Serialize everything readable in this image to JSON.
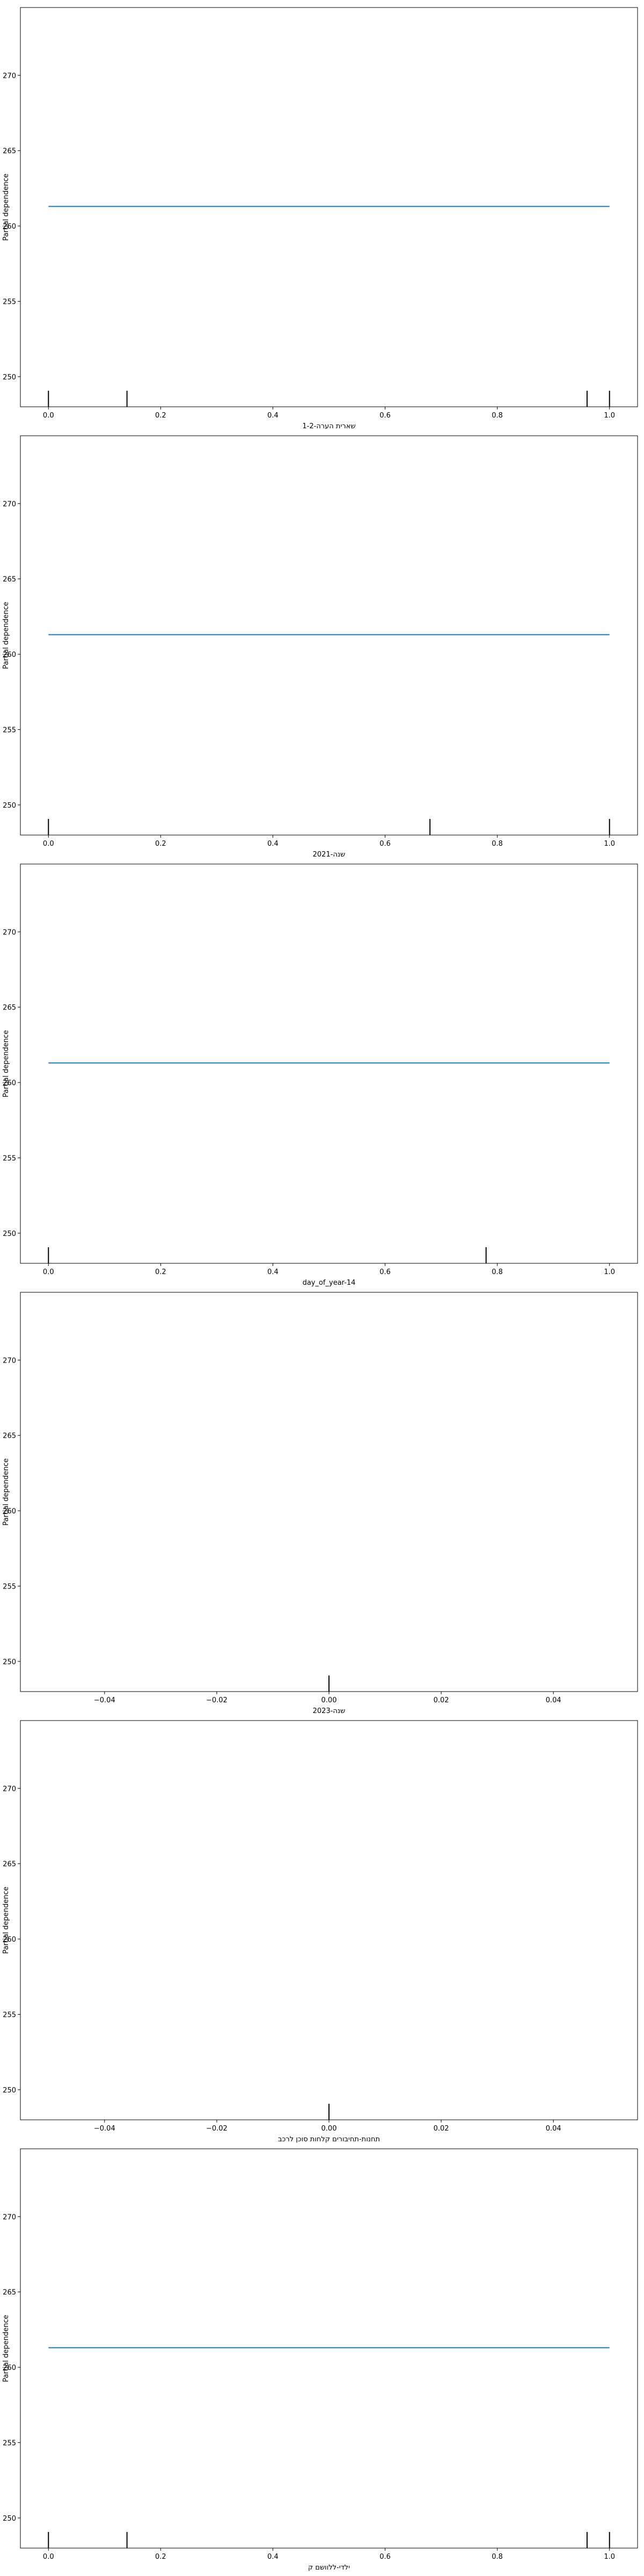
{
  "colors": {
    "line": "#1f77b4",
    "axes": "#000000",
    "rug": "#000000",
    "background": "#ffffff"
  },
  "chart_data": [
    {
      "type": "line",
      "xlabel": "שארית הערה-1-2",
      "ylabel": "Partial dependence",
      "xlim": [
        -0.05,
        1.05
      ],
      "ylim": [
        248,
        274.5
      ],
      "xticks": [
        0.0,
        0.2,
        0.4,
        0.6,
        0.8,
        1.0
      ],
      "xtick_labels": [
        "0.0",
        "0.2",
        "0.4",
        "0.6",
        "0.8",
        "1.0"
      ],
      "yticks": [
        250,
        255,
        260,
        265,
        270
      ],
      "ytick_labels": [
        "250",
        "255",
        "260",
        "265",
        "270"
      ],
      "x": [
        0.0,
        1.0
      ],
      "y": [
        261.3,
        261.3
      ],
      "rug": [
        0.0,
        0.14,
        0.96,
        1.0
      ]
    },
    {
      "type": "line",
      "xlabel": "שנה-2021",
      "ylabel": "Partial dependence",
      "xlim": [
        -0.05,
        1.05
      ],
      "ylim": [
        248,
        274.5
      ],
      "xticks": [
        0.0,
        0.2,
        0.4,
        0.6,
        0.8,
        1.0
      ],
      "xtick_labels": [
        "0.0",
        "0.2",
        "0.4",
        "0.6",
        "0.8",
        "1.0"
      ],
      "yticks": [
        250,
        255,
        260,
        265,
        270
      ],
      "ytick_labels": [
        "250",
        "255",
        "260",
        "265",
        "270"
      ],
      "x": [
        0.0,
        1.0
      ],
      "y": [
        261.3,
        261.3
      ],
      "rug": [
        0.0,
        0.68,
        1.0
      ]
    },
    {
      "type": "line",
      "xlabel": "day_of_year-14",
      "ylabel": "Partial dependence",
      "xlim": [
        -0.05,
        1.05
      ],
      "ylim": [
        248,
        274.5
      ],
      "xticks": [
        0.0,
        0.2,
        0.4,
        0.6,
        0.8,
        1.0
      ],
      "xtick_labels": [
        "0.0",
        "0.2",
        "0.4",
        "0.6",
        "0.8",
        "1.0"
      ],
      "yticks": [
        250,
        255,
        260,
        265,
        270
      ],
      "ytick_labels": [
        "250",
        "255",
        "260",
        "265",
        "270"
      ],
      "x": [
        0.0,
        1.0
      ],
      "y": [
        261.3,
        261.3
      ],
      "rug": [
        0.0,
        0.78
      ]
    },
    {
      "type": "line",
      "xlabel": "שנה-2023",
      "ylabel": "Partial dependence",
      "xlim": [
        -0.055,
        0.055
      ],
      "ylim": [
        248,
        274.5
      ],
      "xticks": [
        -0.04,
        -0.02,
        0.0,
        0.02,
        0.04
      ],
      "xtick_labels": [
        "−0.04",
        "−0.02",
        "0.00",
        "0.02",
        "0.04"
      ],
      "yticks": [
        250,
        255,
        260,
        265,
        270
      ],
      "ytick_labels": [
        "250",
        "255",
        "260",
        "265",
        "270"
      ],
      "x": [],
      "y": [],
      "rug": [
        0.0
      ]
    },
    {
      "type": "line",
      "xlabel": "תחנות-תחיבורים קלחות סוכן לרכב",
      "ylabel": "Partial dependence",
      "xlim": [
        -0.055,
        0.055
      ],
      "ylim": [
        248,
        274.5
      ],
      "xticks": [
        -0.04,
        -0.02,
        0.0,
        0.02,
        0.04
      ],
      "xtick_labels": [
        "−0.04",
        "−0.02",
        "0.00",
        "0.02",
        "0.04"
      ],
      "yticks": [
        250,
        255,
        260,
        265,
        270
      ],
      "ytick_labels": [
        "250",
        "255",
        "260",
        "265",
        "270"
      ],
      "x": [],
      "y": [],
      "rug": [
        0.0
      ]
    },
    {
      "type": "line",
      "xlabel": "ילדי-ללוושם ק",
      "ylabel": "Partial dependence",
      "xlim": [
        -0.05,
        1.05
      ],
      "ylim": [
        248,
        274.5
      ],
      "xticks": [
        0.0,
        0.2,
        0.4,
        0.6,
        0.8,
        1.0
      ],
      "xtick_labels": [
        "0.0",
        "0.2",
        "0.4",
        "0.6",
        "0.8",
        "1.0"
      ],
      "yticks": [
        250,
        255,
        260,
        265,
        270
      ],
      "ytick_labels": [
        "250",
        "255",
        "260",
        "265",
        "270"
      ],
      "x": [
        0.0,
        1.0
      ],
      "y": [
        261.3,
        261.3
      ],
      "rug": [
        0.0,
        0.14,
        0.96,
        1.0
      ]
    }
  ]
}
